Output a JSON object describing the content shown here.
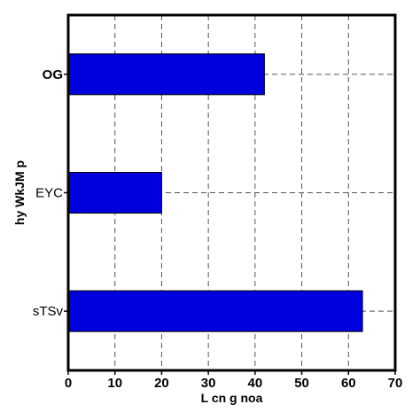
{
  "chart_data": {
    "type": "bar",
    "orientation": "horizontal",
    "categories": [
      "OG",
      "EYC",
      "sTSv"
    ],
    "category_label_bold": [
      true,
      false,
      false
    ],
    "values": [
      42,
      20,
      63
    ],
    "xlabel": "L cn g noa",
    "ylabel": "hy WkJM p",
    "xlim": [
      0,
      70
    ],
    "xticks": [
      "0",
      "10",
      "20",
      "30",
      "40",
      "50",
      "60",
      "70"
    ],
    "grid": true,
    "grid_style": "dashed",
    "bar_color": "#0000dd",
    "bar_edge_color": "#000000"
  }
}
